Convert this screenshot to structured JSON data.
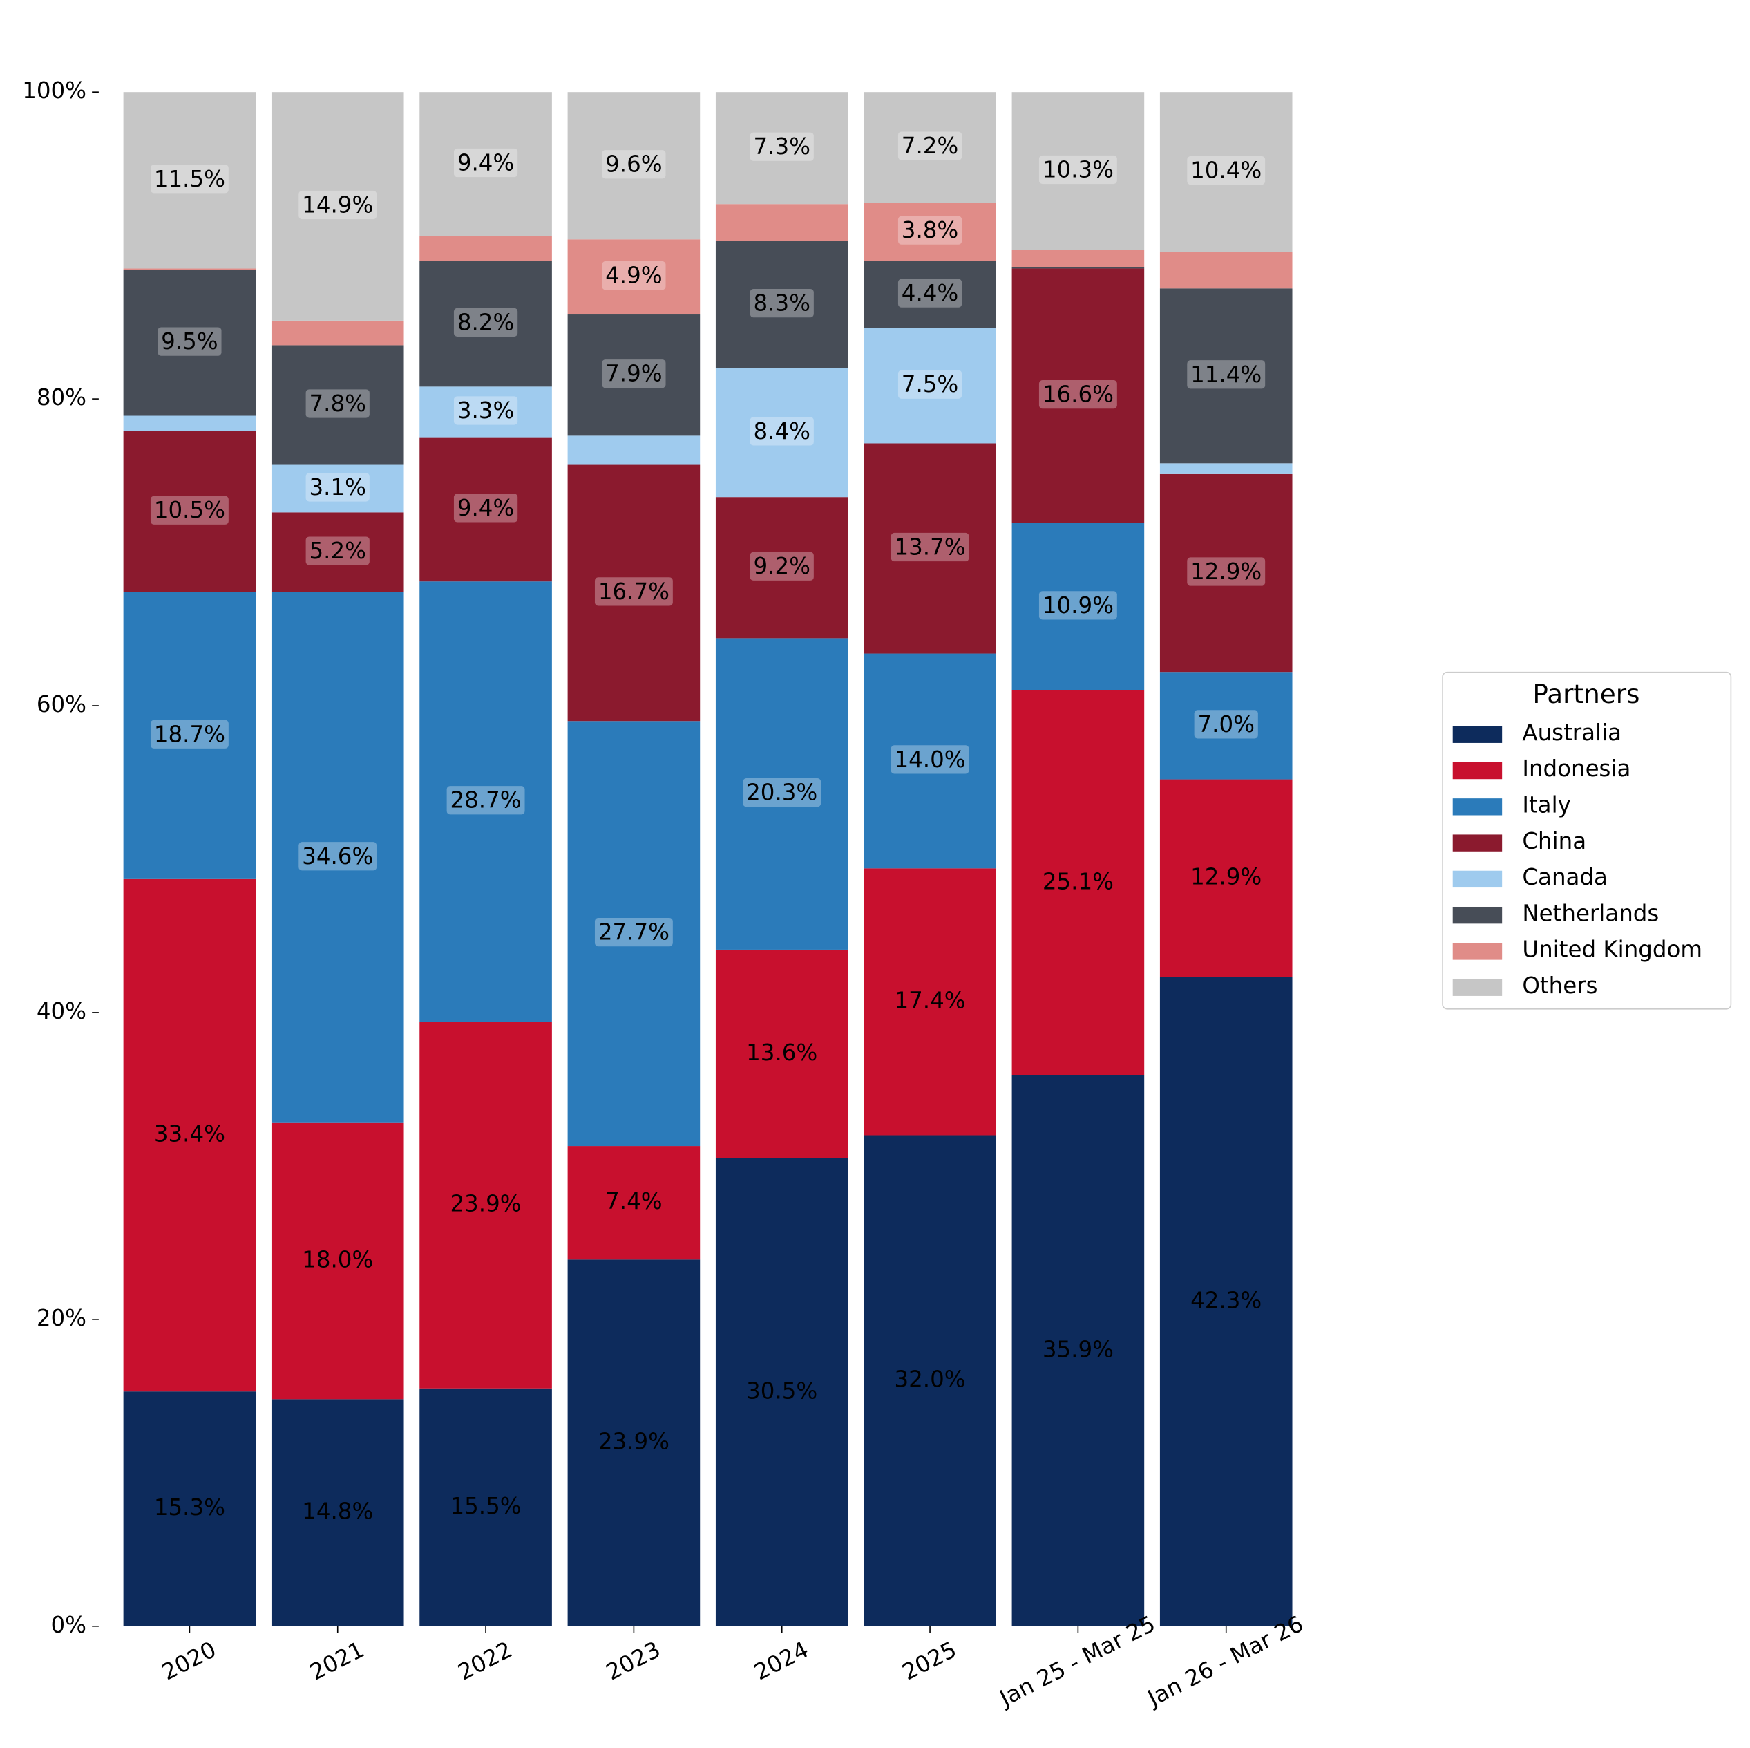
{
  "chart_data": {
    "type": "stacked_bar",
    "categories": [
      "2020",
      "2021",
      "2022",
      "2023",
      "2024",
      "2025",
      "Jan 25 - Mar 25",
      "Jan 26 - Mar 26"
    ],
    "series": [
      {
        "name": "Australia",
        "color": "#0d2b5c",
        "values": [
          15.3,
          14.8,
          15.5,
          23.9,
          30.5,
          32.0,
          35.9,
          42.3
        ],
        "value_labels": [
          "15.3%",
          "14.8%",
          "15.5%",
          "23.9%",
          "30.5%",
          "32.0%",
          "35.9%",
          "42.3%"
        ]
      },
      {
        "name": "Indonesia",
        "color": "#c8102e",
        "values": [
          33.4,
          18.0,
          23.9,
          7.4,
          13.6,
          17.4,
          25.1,
          12.9
        ],
        "value_labels": [
          "33.4%",
          "18.0%",
          "23.9%",
          "7.4%",
          "13.6%",
          "17.4%",
          "25.1%",
          "12.9%"
        ]
      },
      {
        "name": "Italy",
        "color": "#2b7bba",
        "values": [
          18.7,
          34.6,
          28.7,
          27.7,
          20.3,
          14.0,
          10.9,
          7.0
        ],
        "value_labels": [
          "18.7%",
          "34.6%",
          "28.7%",
          "27.7%",
          "20.3%",
          "14.0%",
          "10.9%",
          "7.0%"
        ]
      },
      {
        "name": "China",
        "color": "#8b1a2e",
        "values": [
          10.5,
          5.2,
          9.4,
          16.7,
          9.2,
          13.7,
          16.6,
          12.9
        ],
        "value_labels": [
          "10.5%",
          "5.2%",
          "9.4%",
          "16.7%",
          "9.2%",
          "13.7%",
          "16.6%",
          "12.9%"
        ]
      },
      {
        "name": "Canada",
        "color": "#9fcbee",
        "values": [
          1.0,
          3.1,
          3.3,
          1.9,
          8.4,
          7.5,
          0.0,
          0.7
        ],
        "value_labels": [
          null,
          "3.1%",
          "3.3%",
          null,
          "8.4%",
          "7.5%",
          null,
          null
        ]
      },
      {
        "name": "Netherlands",
        "color": "#474d57",
        "values": [
          9.5,
          7.8,
          8.2,
          7.9,
          8.3,
          4.4,
          0.1,
          11.4
        ],
        "value_labels": [
          "9.5%",
          "7.8%",
          "8.2%",
          "7.9%",
          "8.3%",
          "4.4%",
          null,
          "11.4%"
        ]
      },
      {
        "name": "United Kingdom",
        "color": "#e08c88",
        "values": [
          0.1,
          1.6,
          1.6,
          4.9,
          2.4,
          3.8,
          1.1,
          2.4
        ],
        "value_labels": [
          null,
          null,
          null,
          "4.9%",
          null,
          "3.8%",
          null,
          null
        ]
      },
      {
        "name": "Others",
        "color": "#c6c6c6",
        "values": [
          11.5,
          14.9,
          9.4,
          9.6,
          7.3,
          7.2,
          10.3,
          10.4
        ],
        "value_labels": [
          "11.5%",
          "14.9%",
          "9.4%",
          "9.6%",
          "7.3%",
          "7.2%",
          "10.3%",
          "10.4%"
        ]
      }
    ],
    "ylim": [
      0,
      100
    ],
    "yticks": [
      {
        "value": 0,
        "label": "0%"
      },
      {
        "value": 20,
        "label": "20%"
      },
      {
        "value": 40,
        "label": "40%"
      },
      {
        "value": 60,
        "label": "60%"
      },
      {
        "value": 80,
        "label": "80%"
      },
      {
        "value": 100,
        "label": "100%"
      }
    ],
    "legend_title": "Partners",
    "legend_position": "right"
  }
}
